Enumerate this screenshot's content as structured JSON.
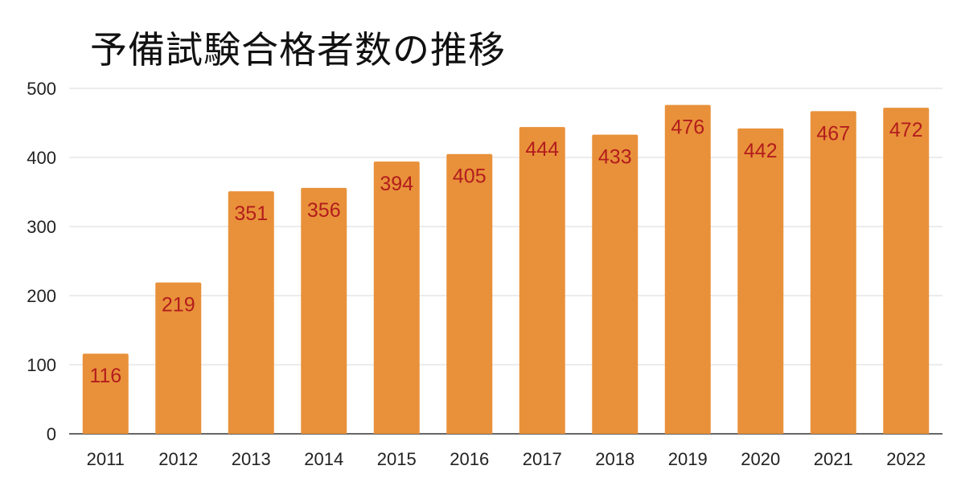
{
  "chart_data": {
    "type": "bar",
    "title": "予備試験合格者数の推移",
    "xlabel": "",
    "ylabel": "",
    "categories": [
      "2011",
      "2012",
      "2013",
      "2014",
      "2015",
      "2016",
      "2017",
      "2018",
      "2019",
      "2020",
      "2021",
      "2022"
    ],
    "values": [
      116,
      219,
      351,
      356,
      394,
      405,
      444,
      433,
      476,
      442,
      467,
      472
    ],
    "ylim": [
      0,
      500
    ],
    "yticks": [
      0,
      100,
      200,
      300,
      400,
      500
    ],
    "grid": true,
    "legend": "none",
    "bar_color": "#e8913a",
    "data_label_color": "#b31d1d",
    "grid_color": "#d9d9d9"
  }
}
